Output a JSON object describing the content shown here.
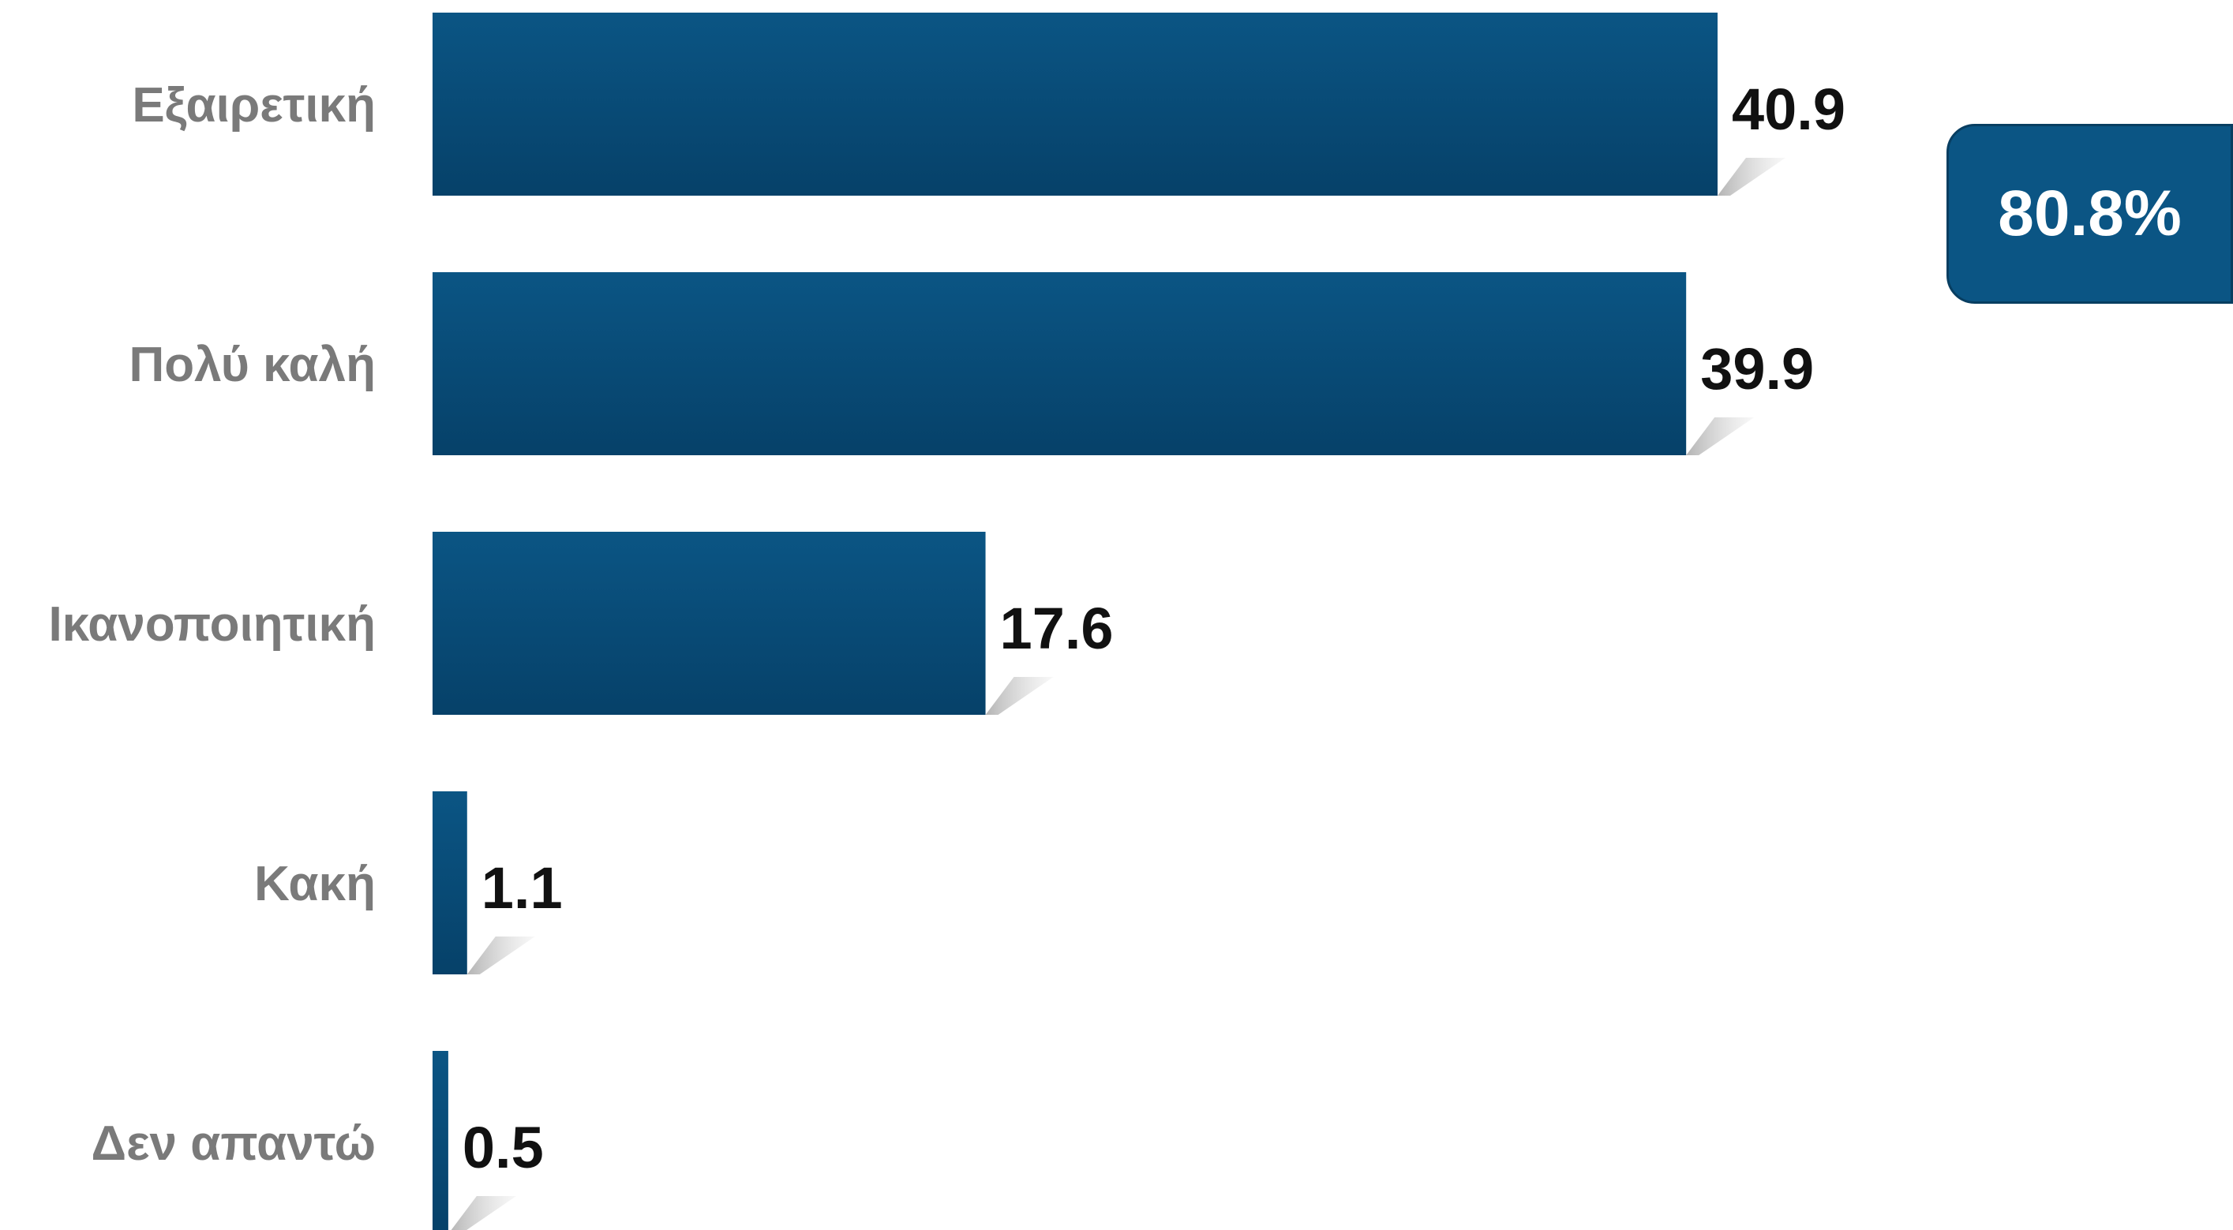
{
  "chart_data": {
    "type": "bar",
    "orientation": "horizontal",
    "categories": [
      "Εξαιρετική",
      "Πολύ καλή",
      "Ικανοποιητική",
      "Κακή",
      "Δεν απαντώ"
    ],
    "values": [
      40.9,
      39.9,
      17.6,
      1.1,
      0.5
    ],
    "value_labels": [
      "40.9",
      "39.9",
      "17.6",
      "1.1",
      "0.5"
    ],
    "title": "",
    "xlabel": "",
    "ylabel": "",
    "xlim": [
      0,
      40.9
    ],
    "grid": false,
    "legend": "none",
    "bar_color": "#0b5584",
    "bar_color_dark": "#074570"
  },
  "summary_badge": {
    "text": "80.8%",
    "color": "#0b5584"
  }
}
